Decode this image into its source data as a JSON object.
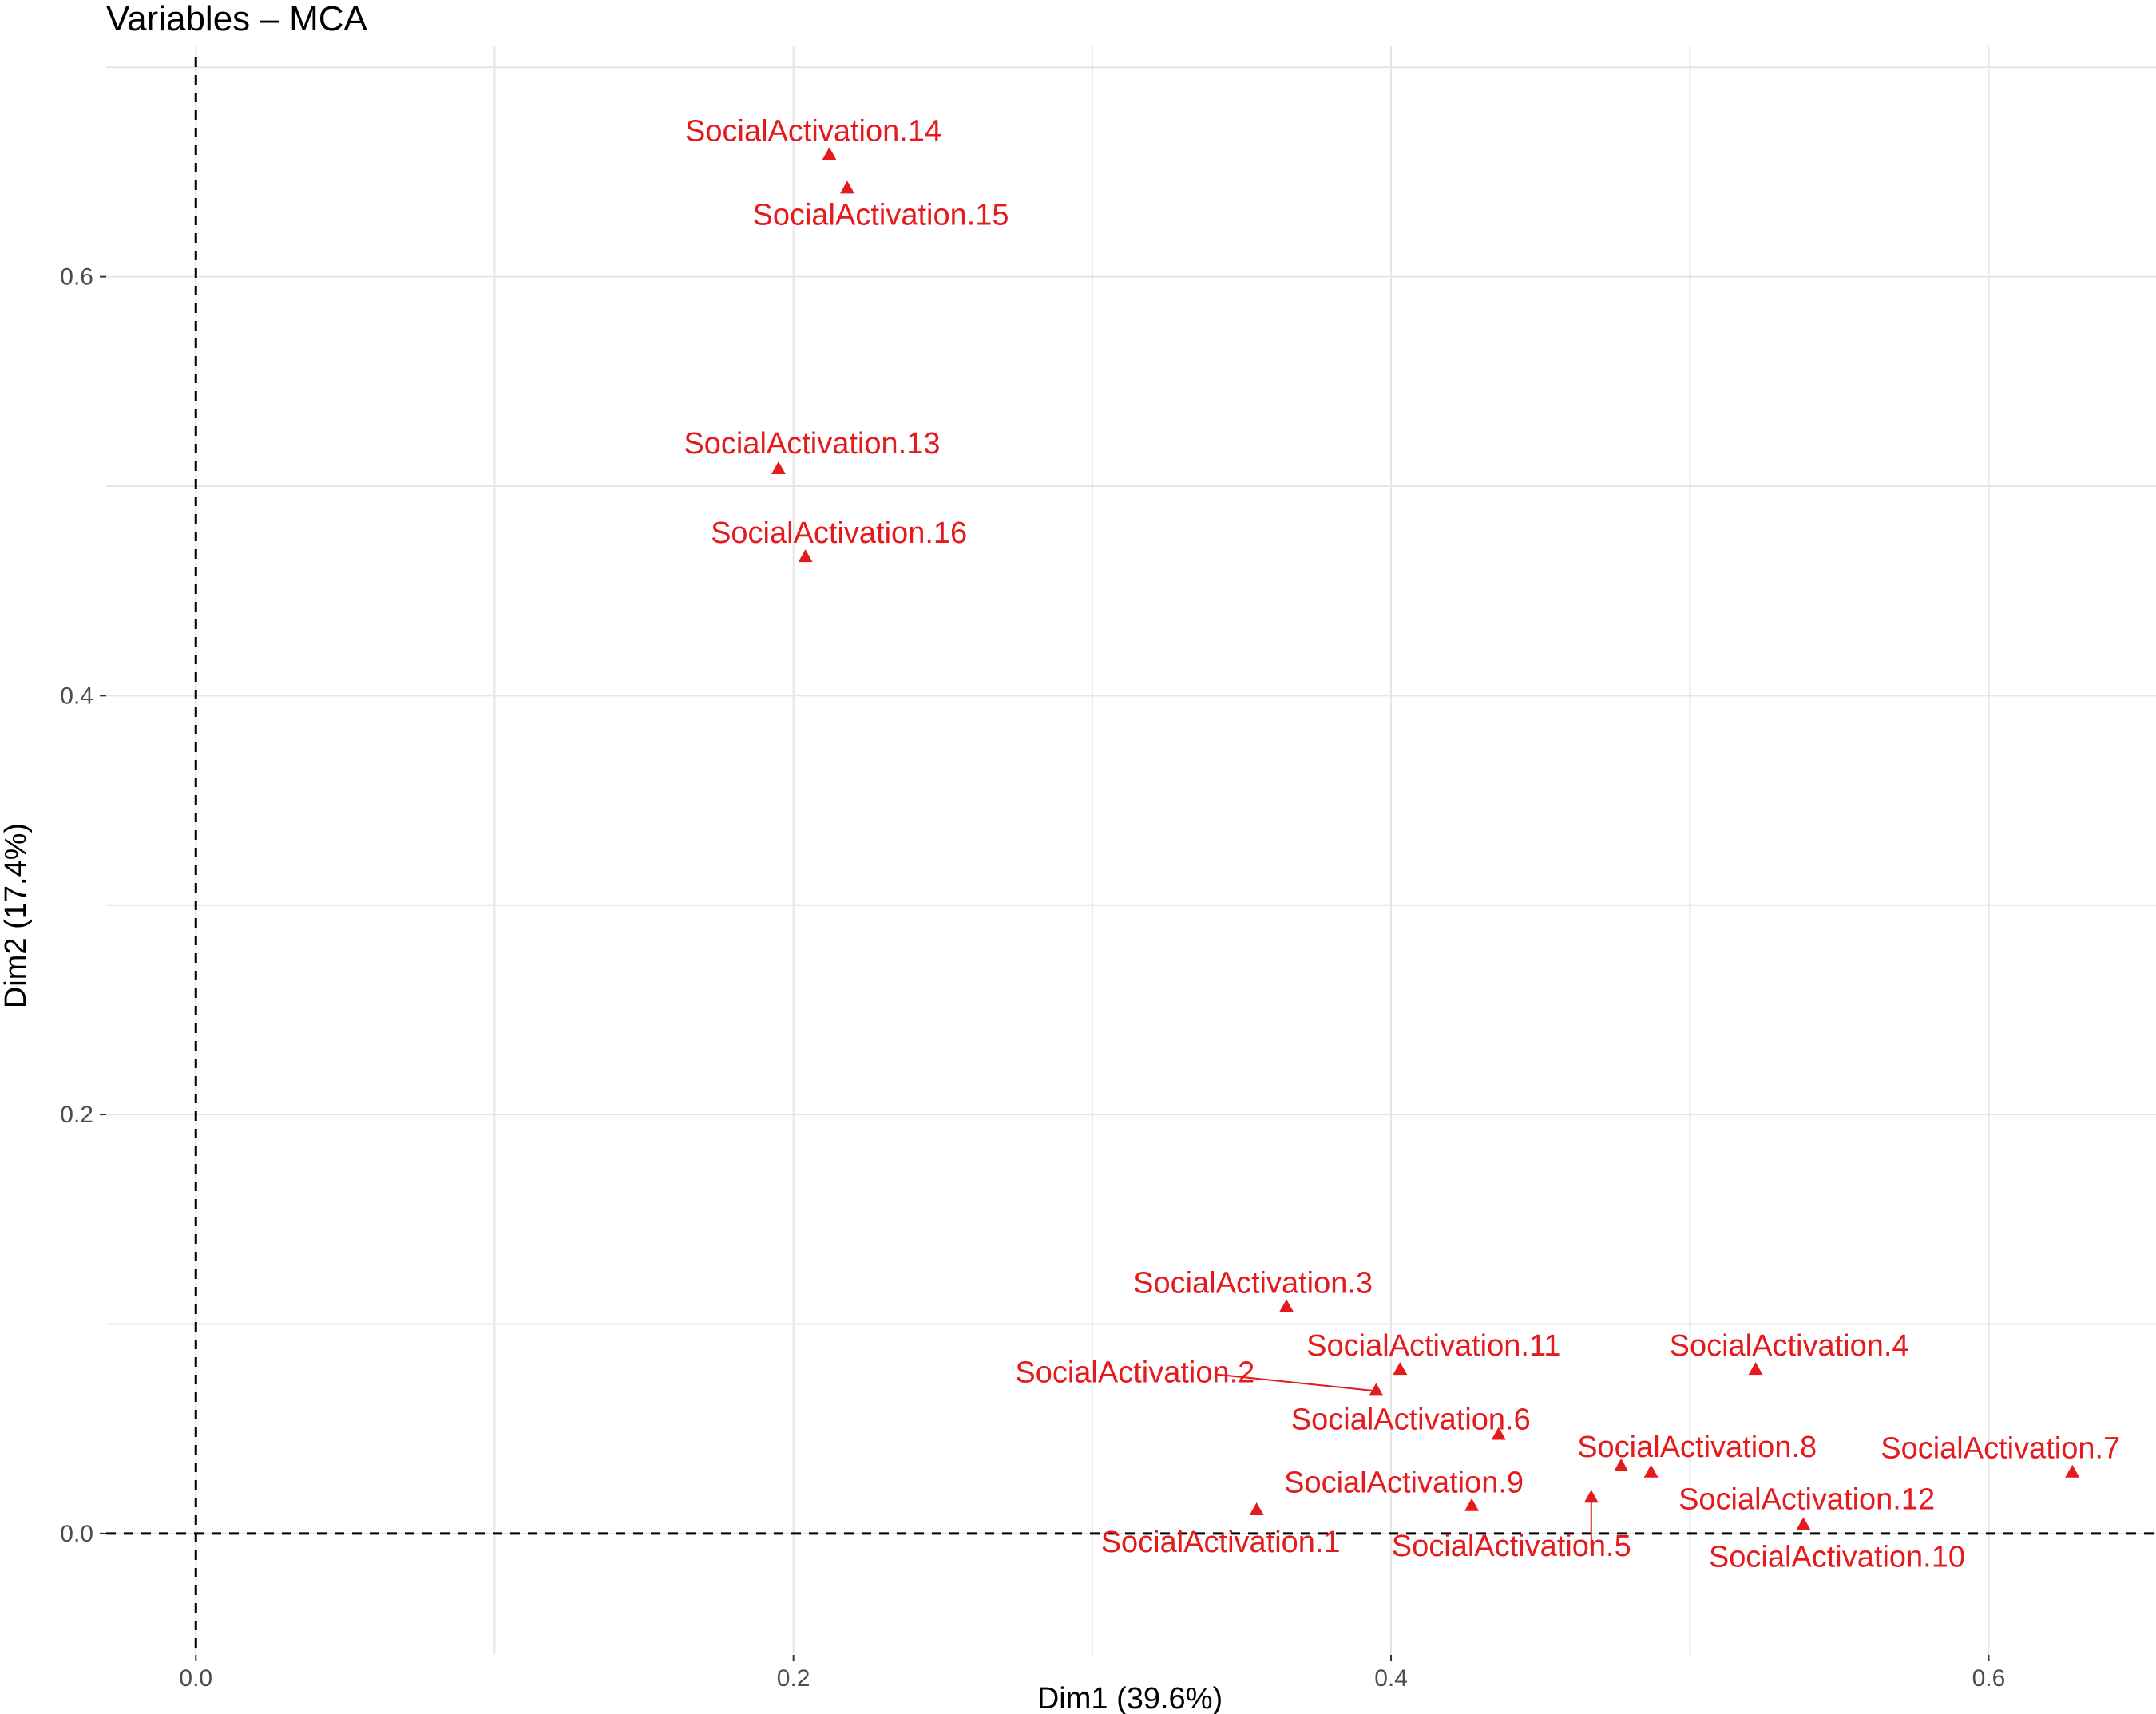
{
  "chart_data": {
    "type": "scatter",
    "title": "Variables – MCA",
    "xlabel": "Dim1 (39.6%)",
    "ylabel": "Dim2 (17.4%)",
    "xlim": [
      -0.03,
      0.656
    ],
    "ylim": [
      -0.058,
      0.71
    ],
    "x_ticks": [
      0.0,
      0.2,
      0.4,
      0.6
    ],
    "x_tick_labels": [
      "0.0",
      "0.2",
      "0.4",
      "0.6"
    ],
    "y_ticks": [
      0.0,
      0.2,
      0.4,
      0.6
    ],
    "y_tick_labels": [
      "0.0",
      "0.2",
      "0.4",
      "0.6"
    ],
    "grid": true,
    "reference_lines": {
      "x": 0,
      "y": 0
    },
    "marker": "triangle",
    "point_color": "#e41a1c",
    "points": [
      {
        "label": "SocialActivation.14",
        "x": 0.212,
        "y": 0.658
      },
      {
        "label": "SocialActivation.15",
        "x": 0.218,
        "y": 0.642
      },
      {
        "label": "SocialActivation.13",
        "x": 0.195,
        "y": 0.508
      },
      {
        "label": "SocialActivation.16",
        "x": 0.204,
        "y": 0.466
      },
      {
        "label": "SocialActivation.3",
        "x": 0.365,
        "y": 0.108
      },
      {
        "label": "SocialActivation.11",
        "x": 0.403,
        "y": 0.078
      },
      {
        "label": "SocialActivation.4",
        "x": 0.522,
        "y": 0.078
      },
      {
        "label": "SocialActivation.2",
        "x": 0.395,
        "y": 0.068
      },
      {
        "label": "SocialActivation.6",
        "x": 0.436,
        "y": 0.047
      },
      {
        "label": "SocialActivation.8",
        "x": 0.477,
        "y": 0.032
      },
      {
        "label": "SocialActivation.12",
        "x": 0.487,
        "y": 0.029
      },
      {
        "label": "SocialActivation.7",
        "x": 0.628,
        "y": 0.029
      },
      {
        "label": "SocialActivation.5",
        "x": 0.467,
        "y": 0.017
      },
      {
        "label": "SocialActivation.9",
        "x": 0.427,
        "y": 0.013
      },
      {
        "label": "SocialActivation.1",
        "x": 0.355,
        "y": 0.011
      },
      {
        "label": "SocialActivation.10",
        "x": 0.538,
        "y": 0.004
      }
    ]
  }
}
